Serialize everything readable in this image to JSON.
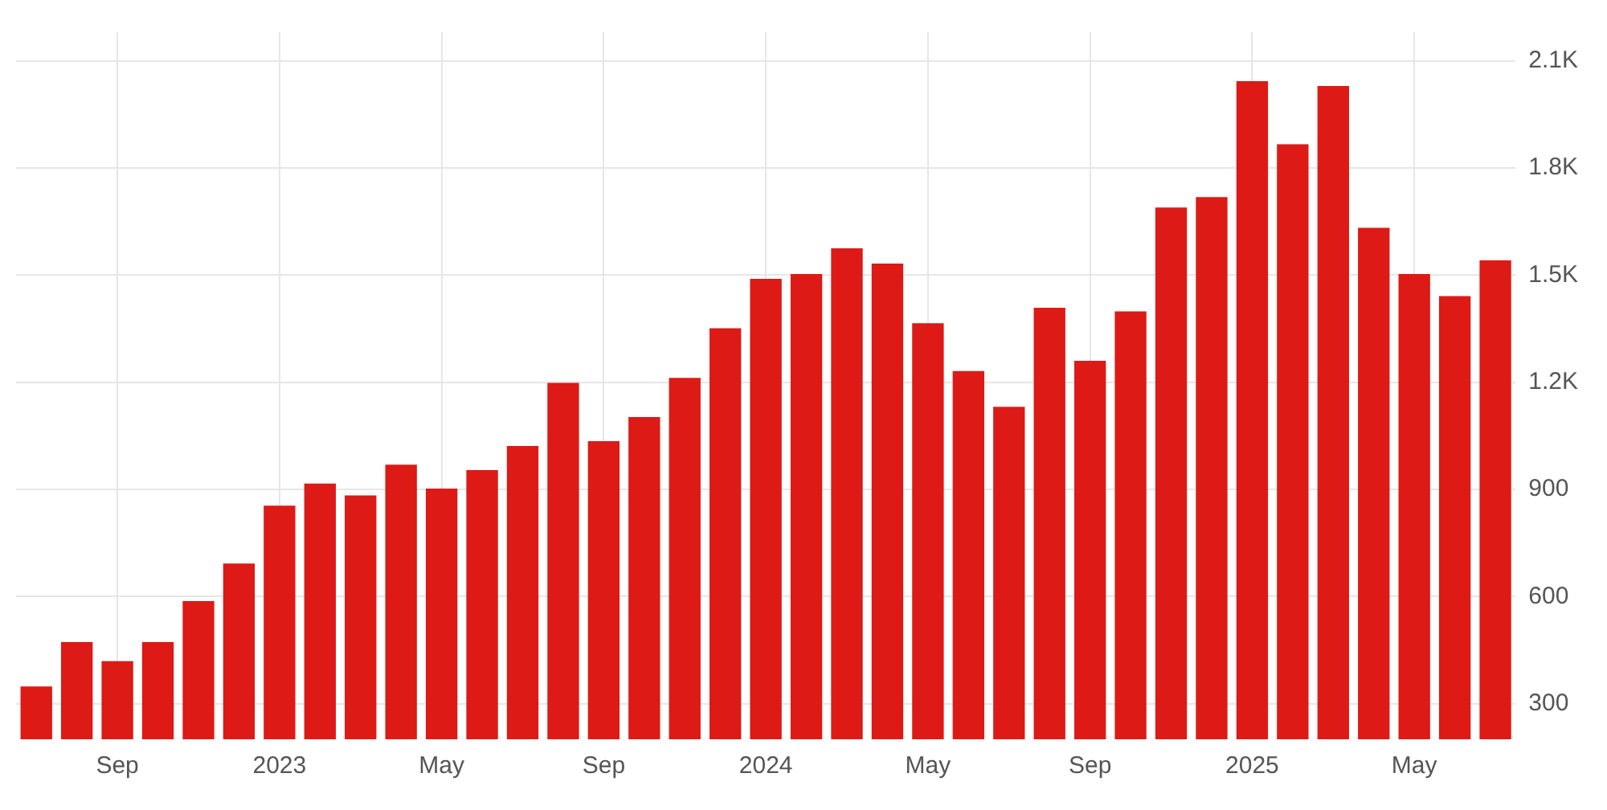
{
  "chart_data": {
    "type": "bar",
    "categories": [
      null,
      null,
      "Sep",
      null,
      null,
      null,
      "2023",
      null,
      null,
      null,
      "May",
      null,
      null,
      null,
      "Sep",
      null,
      null,
      null,
      "2024",
      null,
      null,
      null,
      "May",
      null,
      null,
      null,
      "Sep",
      null,
      null,
      null,
      "2025",
      null,
      null,
      null,
      "May",
      null,
      null
    ],
    "values": [
      348,
      472,
      419,
      472,
      587,
      692,
      854,
      916,
      883,
      969,
      902,
      954,
      1021,
      1198,
      1035,
      1102,
      1212,
      1351,
      1489,
      1503,
      1575,
      1532,
      1365,
      1231,
      1131,
      1408,
      1260,
      1398,
      1689,
      1718,
      2043,
      1866,
      2029,
      1632,
      1503,
      1441,
      1541
    ],
    "color": "#dd1a16",
    "ylim": [
      200,
      2180
    ],
    "yticks": [
      {
        "value": 300,
        "label": "300"
      },
      {
        "value": 600,
        "label": "600"
      },
      {
        "value": 900,
        "label": "900"
      },
      {
        "value": 1200,
        "label": "1.2K"
      },
      {
        "value": 1500,
        "label": "1.5K"
      },
      {
        "value": 1800,
        "label": "1.8K"
      },
      {
        "value": 2100,
        "label": "2.1K"
      }
    ],
    "grid": true
  }
}
